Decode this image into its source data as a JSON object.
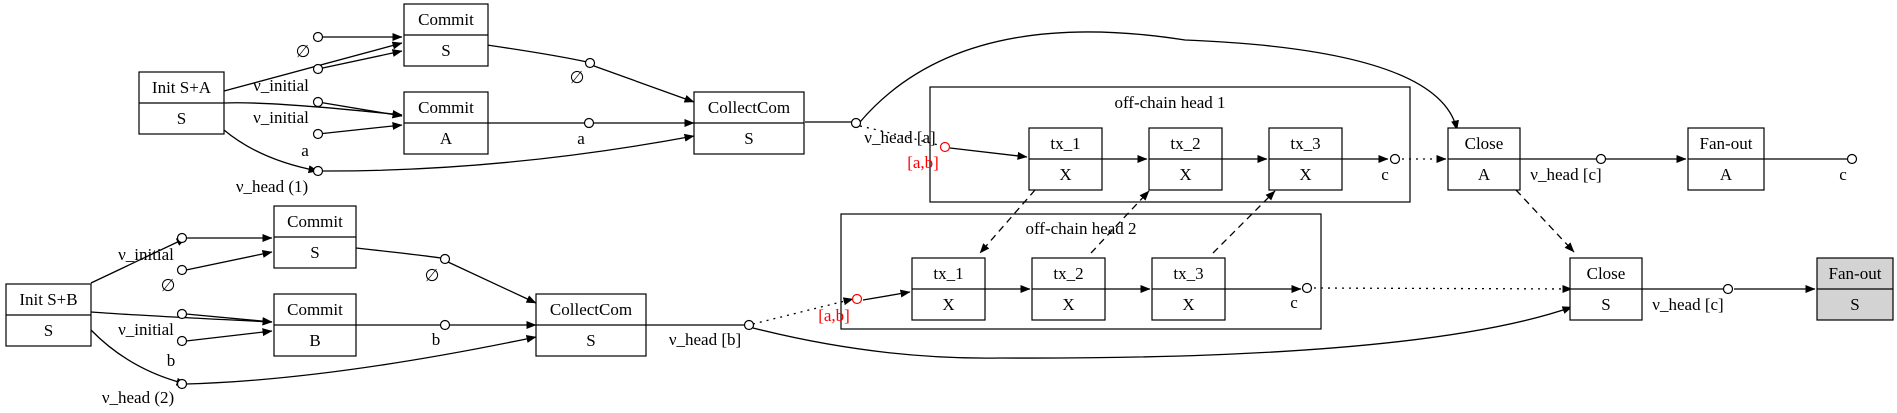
{
  "nodes": {
    "init_sa": {
      "top": "Init S+A",
      "bottom": "S"
    },
    "init_sb": {
      "top": "Init S+B",
      "bottom": "S"
    },
    "commit_s1": {
      "top": "Commit",
      "bottom": "S"
    },
    "commit_a": {
      "top": "Commit",
      "bottom": "A"
    },
    "commit_s2": {
      "top": "Commit",
      "bottom": "S"
    },
    "commit_b": {
      "top": "Commit",
      "bottom": "B"
    },
    "collect1": {
      "top": "CollectCom",
      "bottom": "S"
    },
    "collect2": {
      "top": "CollectCom",
      "bottom": "S"
    },
    "h1_tx1": {
      "top": "tx_1",
      "bottom": "X"
    },
    "h1_tx2": {
      "top": "tx_2",
      "bottom": "X"
    },
    "h1_tx3": {
      "top": "tx_3",
      "bottom": "X"
    },
    "h2_tx1": {
      "top": "tx_1",
      "bottom": "X"
    },
    "h2_tx2": {
      "top": "tx_2",
      "bottom": "X"
    },
    "h2_tx3": {
      "top": "tx_3",
      "bottom": "X"
    },
    "close_a": {
      "top": "Close",
      "bottom": "A"
    },
    "close_s": {
      "top": "Close",
      "bottom": "S"
    },
    "fanout_a": {
      "top": "Fan-out",
      "bottom": "A"
    },
    "fanout_s": {
      "top": "Fan-out",
      "bottom": "S"
    }
  },
  "clusters": {
    "head1": "off-chain head 1",
    "head2": "off-chain head 2"
  },
  "labels": {
    "empty_set": "∅",
    "v_initial": "ν_initial",
    "a": "a",
    "b": "b",
    "c": "c",
    "v_head_1": "ν_head (1)",
    "v_head_2": "ν_head (2)",
    "v_head_a": "ν_head [a]",
    "v_head_b": "ν_head [b]",
    "v_head_c": "ν_head [c]",
    "a_b": "[a,b]"
  },
  "colors": {
    "highlight": "#ff0000",
    "final_fill": "#d3d3d3"
  }
}
